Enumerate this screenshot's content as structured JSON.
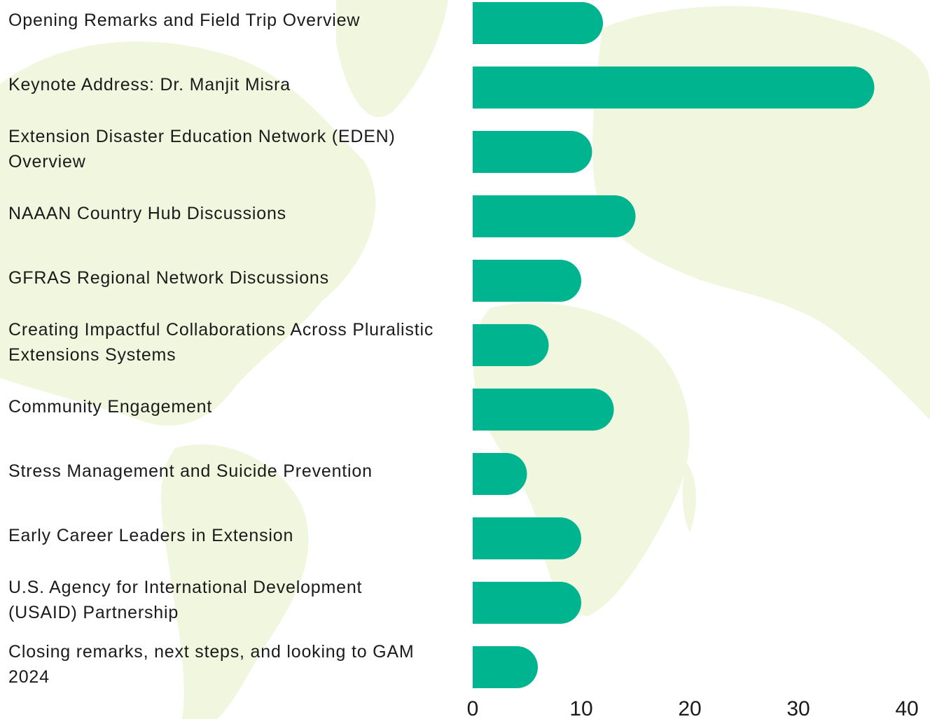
{
  "chart_data": {
    "type": "bar",
    "orientation": "horizontal",
    "categories": [
      "Opening Remarks and Field Trip Overview",
      "Keynote Address: Dr. Manjit Misra",
      "Extension Disaster Education Network (EDEN) Overview",
      "NAAAN Country Hub Discussions",
      "GFRAS Regional Network Discussions",
      "Creating Impactful Collaborations Across Pluralistic Extensions Systems",
      "Community Engagement",
      "Stress Management and Suicide Prevention",
      "Early Career Leaders in Extension",
      "U.S. Agency for International Development (USAID) Partnership",
      "Closing remarks, next steps, and looking to GAM 2024"
    ],
    "values": [
      12,
      37,
      11,
      15,
      10,
      7,
      13,
      5,
      10,
      10,
      6
    ],
    "color": "#00b48f",
    "xlim": [
      0,
      40
    ],
    "xticks": [
      0,
      10,
      20,
      30,
      40
    ],
    "grid": false
  }
}
